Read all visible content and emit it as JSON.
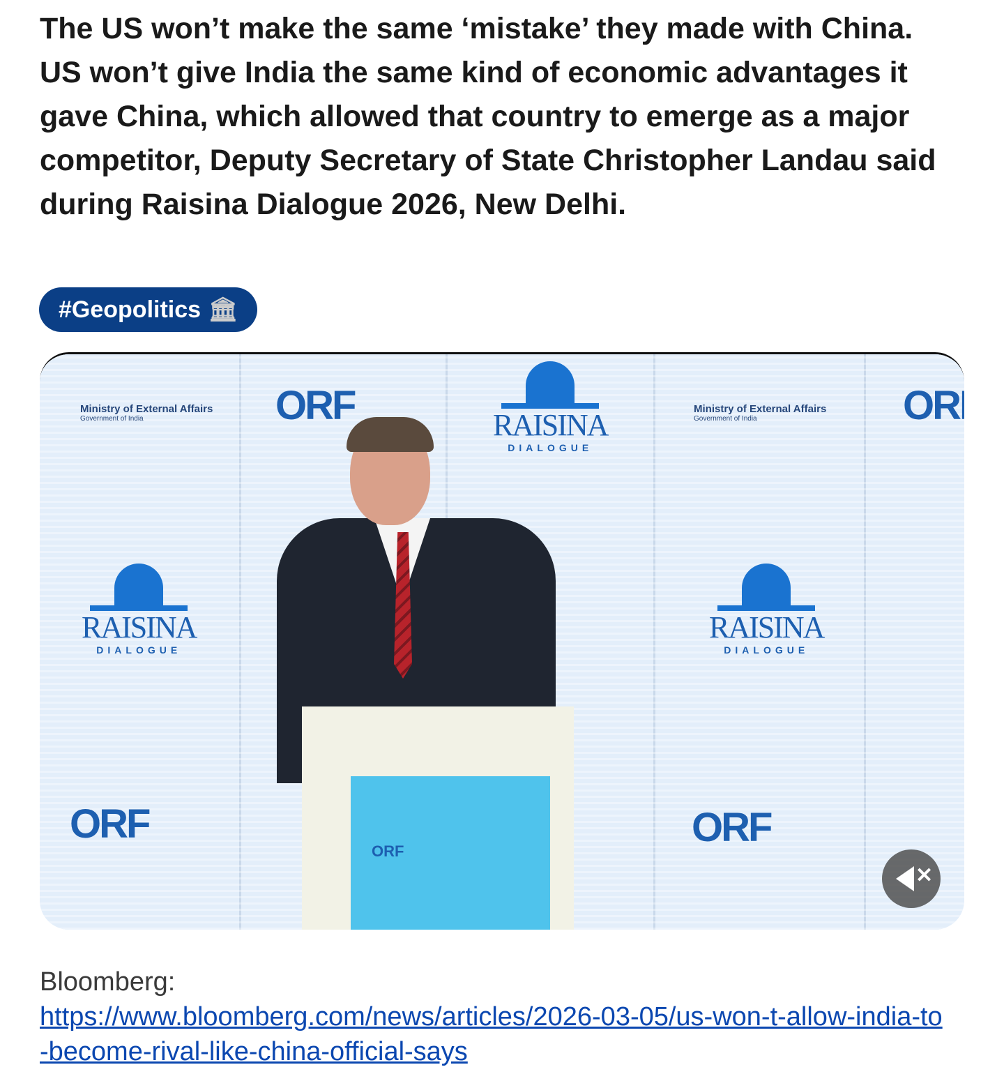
{
  "post": {
    "text": "The US won’t make the same ‘mistake’ they made with China. US won’t give India the same kind of economic advantages it gave China, which allowed that country to emerge as a major competitor, Deputy Secretary of State Christopher Landau said during Raisina Dialogue 2026, New Delhi.",
    "hashtag": "#Geopolitics",
    "hashtag_icon": "classical-building-icon",
    "hashtag_color": "#0b3f86"
  },
  "video": {
    "muted": true,
    "mute_icon": "speaker-muted-icon",
    "backdrop_logos": {
      "orf": "ORF",
      "mea": "Ministry of External Affairs",
      "mea_sub": "Government of India",
      "raisina": "RAISINA",
      "raisina_sub": "DIALOGUE"
    }
  },
  "source": {
    "label": "Bloomberg:",
    "url": "https://www.bloomberg.com/news/articles/2026-03-05/us-won-t-allow-india-to-become-rival-like-china-official-says",
    "link_color": "#0b47b0"
  }
}
